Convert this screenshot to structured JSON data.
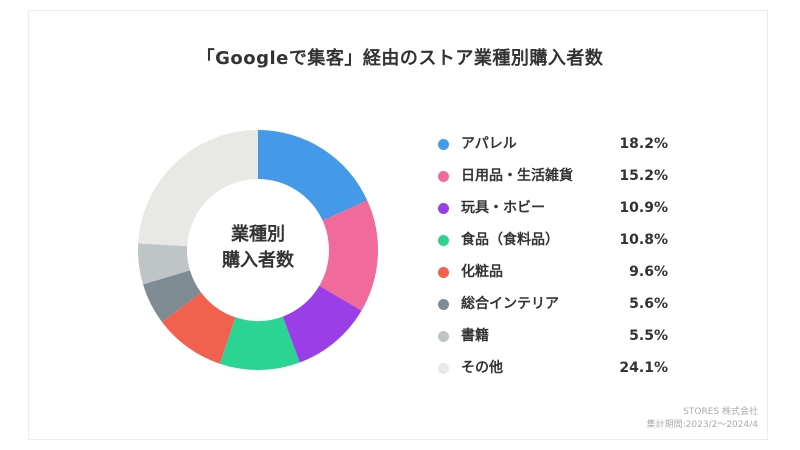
{
  "chart_data": {
    "type": "pie",
    "title": "「Googleで集客」経由のストア業種別購入者数",
    "center_label": [
      "業種別",
      "購入者数"
    ],
    "categories": [
      "アパレル",
      "日用品・生活雑貨",
      "玩具・ホビー",
      "食品（食料品）",
      "化粧品",
      "総合インテリア",
      "書籍",
      "その他"
    ],
    "values": [
      18.2,
      15.2,
      10.9,
      10.8,
      9.6,
      5.6,
      5.5,
      24.1
    ],
    "value_labels": [
      "18.2%",
      "15.2%",
      "10.9%",
      "10.8%",
      "9.6%",
      "5.6%",
      "5.5%",
      "24.1%"
    ],
    "colors": [
      "#4499e8",
      "#f06a9b",
      "#9a3ee8",
      "#2bd493",
      "#f2604e",
      "#7f8b92",
      "#bfc4c6",
      "#e8e8e4"
    ],
    "legend_position": "right"
  },
  "footer": {
    "source": "STORES 株式会社",
    "period": "集計期間:2023/2〜2024/4"
  }
}
